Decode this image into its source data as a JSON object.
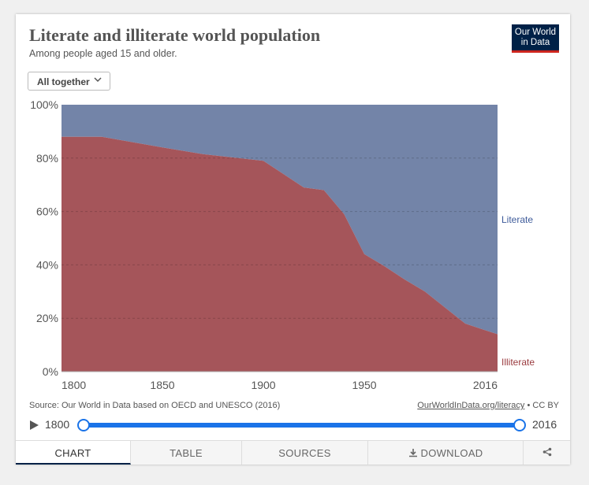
{
  "header": {
    "title": "Literate and illiterate world population",
    "subtitle": "Among people aged 15 and older."
  },
  "logo": {
    "line1": "Our World",
    "line2": "in Data"
  },
  "selector": {
    "value": "All together",
    "icon": "chevron-down-icon"
  },
  "chart_data": {
    "type": "area",
    "stacked": true,
    "normalized_percent": true,
    "x": [
      1800,
      1820,
      1850,
      1870,
      1900,
      1910,
      1920,
      1930,
      1940,
      1950,
      1960,
      1970,
      1980,
      1990,
      2000,
      2010,
      2016
    ],
    "series": [
      {
        "name": "Illiterate",
        "color": "#a5555a",
        "values": [
          88,
          88,
          84,
          81.5,
          79,
          74,
          69,
          68,
          59,
          44,
          39.5,
          34.5,
          30,
          24,
          18,
          15.5,
          14
        ]
      },
      {
        "name": "Literate",
        "color": "#7384a8",
        "values": [
          12,
          12,
          16,
          18.5,
          21,
          26,
          31,
          32,
          41,
          56,
          60.5,
          65.5,
          70,
          76,
          82,
          84.5,
          86
        ]
      }
    ],
    "xticks": [
      "1800",
      "1850",
      "1900",
      "1950",
      "2016"
    ],
    "yticks": [
      "0%",
      "20%",
      "40%",
      "60%",
      "80%",
      "100%"
    ],
    "xlim": [
      1800,
      2016
    ],
    "ylim": [
      0,
      100
    ],
    "grid": "horizontal-dashed",
    "legend": "inline-right"
  },
  "footer": {
    "source": "Source: Our World in Data based on OECD and UNESCO (2016)",
    "url": "OurWorldInData.org/literacy",
    "license": " • CC BY"
  },
  "timeline": {
    "start": "1800",
    "end": "2016",
    "start_fraction": 0,
    "end_fraction": 1
  },
  "tabs": [
    {
      "label": "CHART"
    },
    {
      "label": "TABLE"
    },
    {
      "label": "SOURCES"
    },
    {
      "label": "DOWNLOAD"
    }
  ]
}
